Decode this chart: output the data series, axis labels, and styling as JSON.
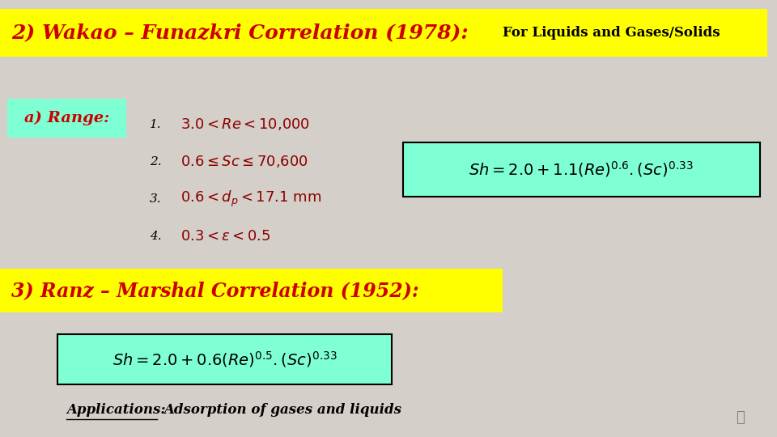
{
  "bg_color": "#d4cfc8",
  "title_text": "2) Wakao – Funazkri Correlation (1978):",
  "title_subtitle": "For Liquids and Gases/Solids",
  "title_bg": "#ffff00",
  "title_color": "#cc0000",
  "range_label": "a) Range:",
  "range_label_bg": "#7fffd4",
  "formula1_bg": "#7fffd4",
  "section3_text": "3) Ranz – Marshal Correlation (1952):",
  "section3_bg": "#ffff00",
  "section3_color": "#cc0000",
  "formula2_bg": "#7fffd4",
  "applications_label": "Applications:",
  "applications_text": "Adsorption of gases and liquids",
  "text_color": "#8b0000",
  "black_color": "#000000"
}
